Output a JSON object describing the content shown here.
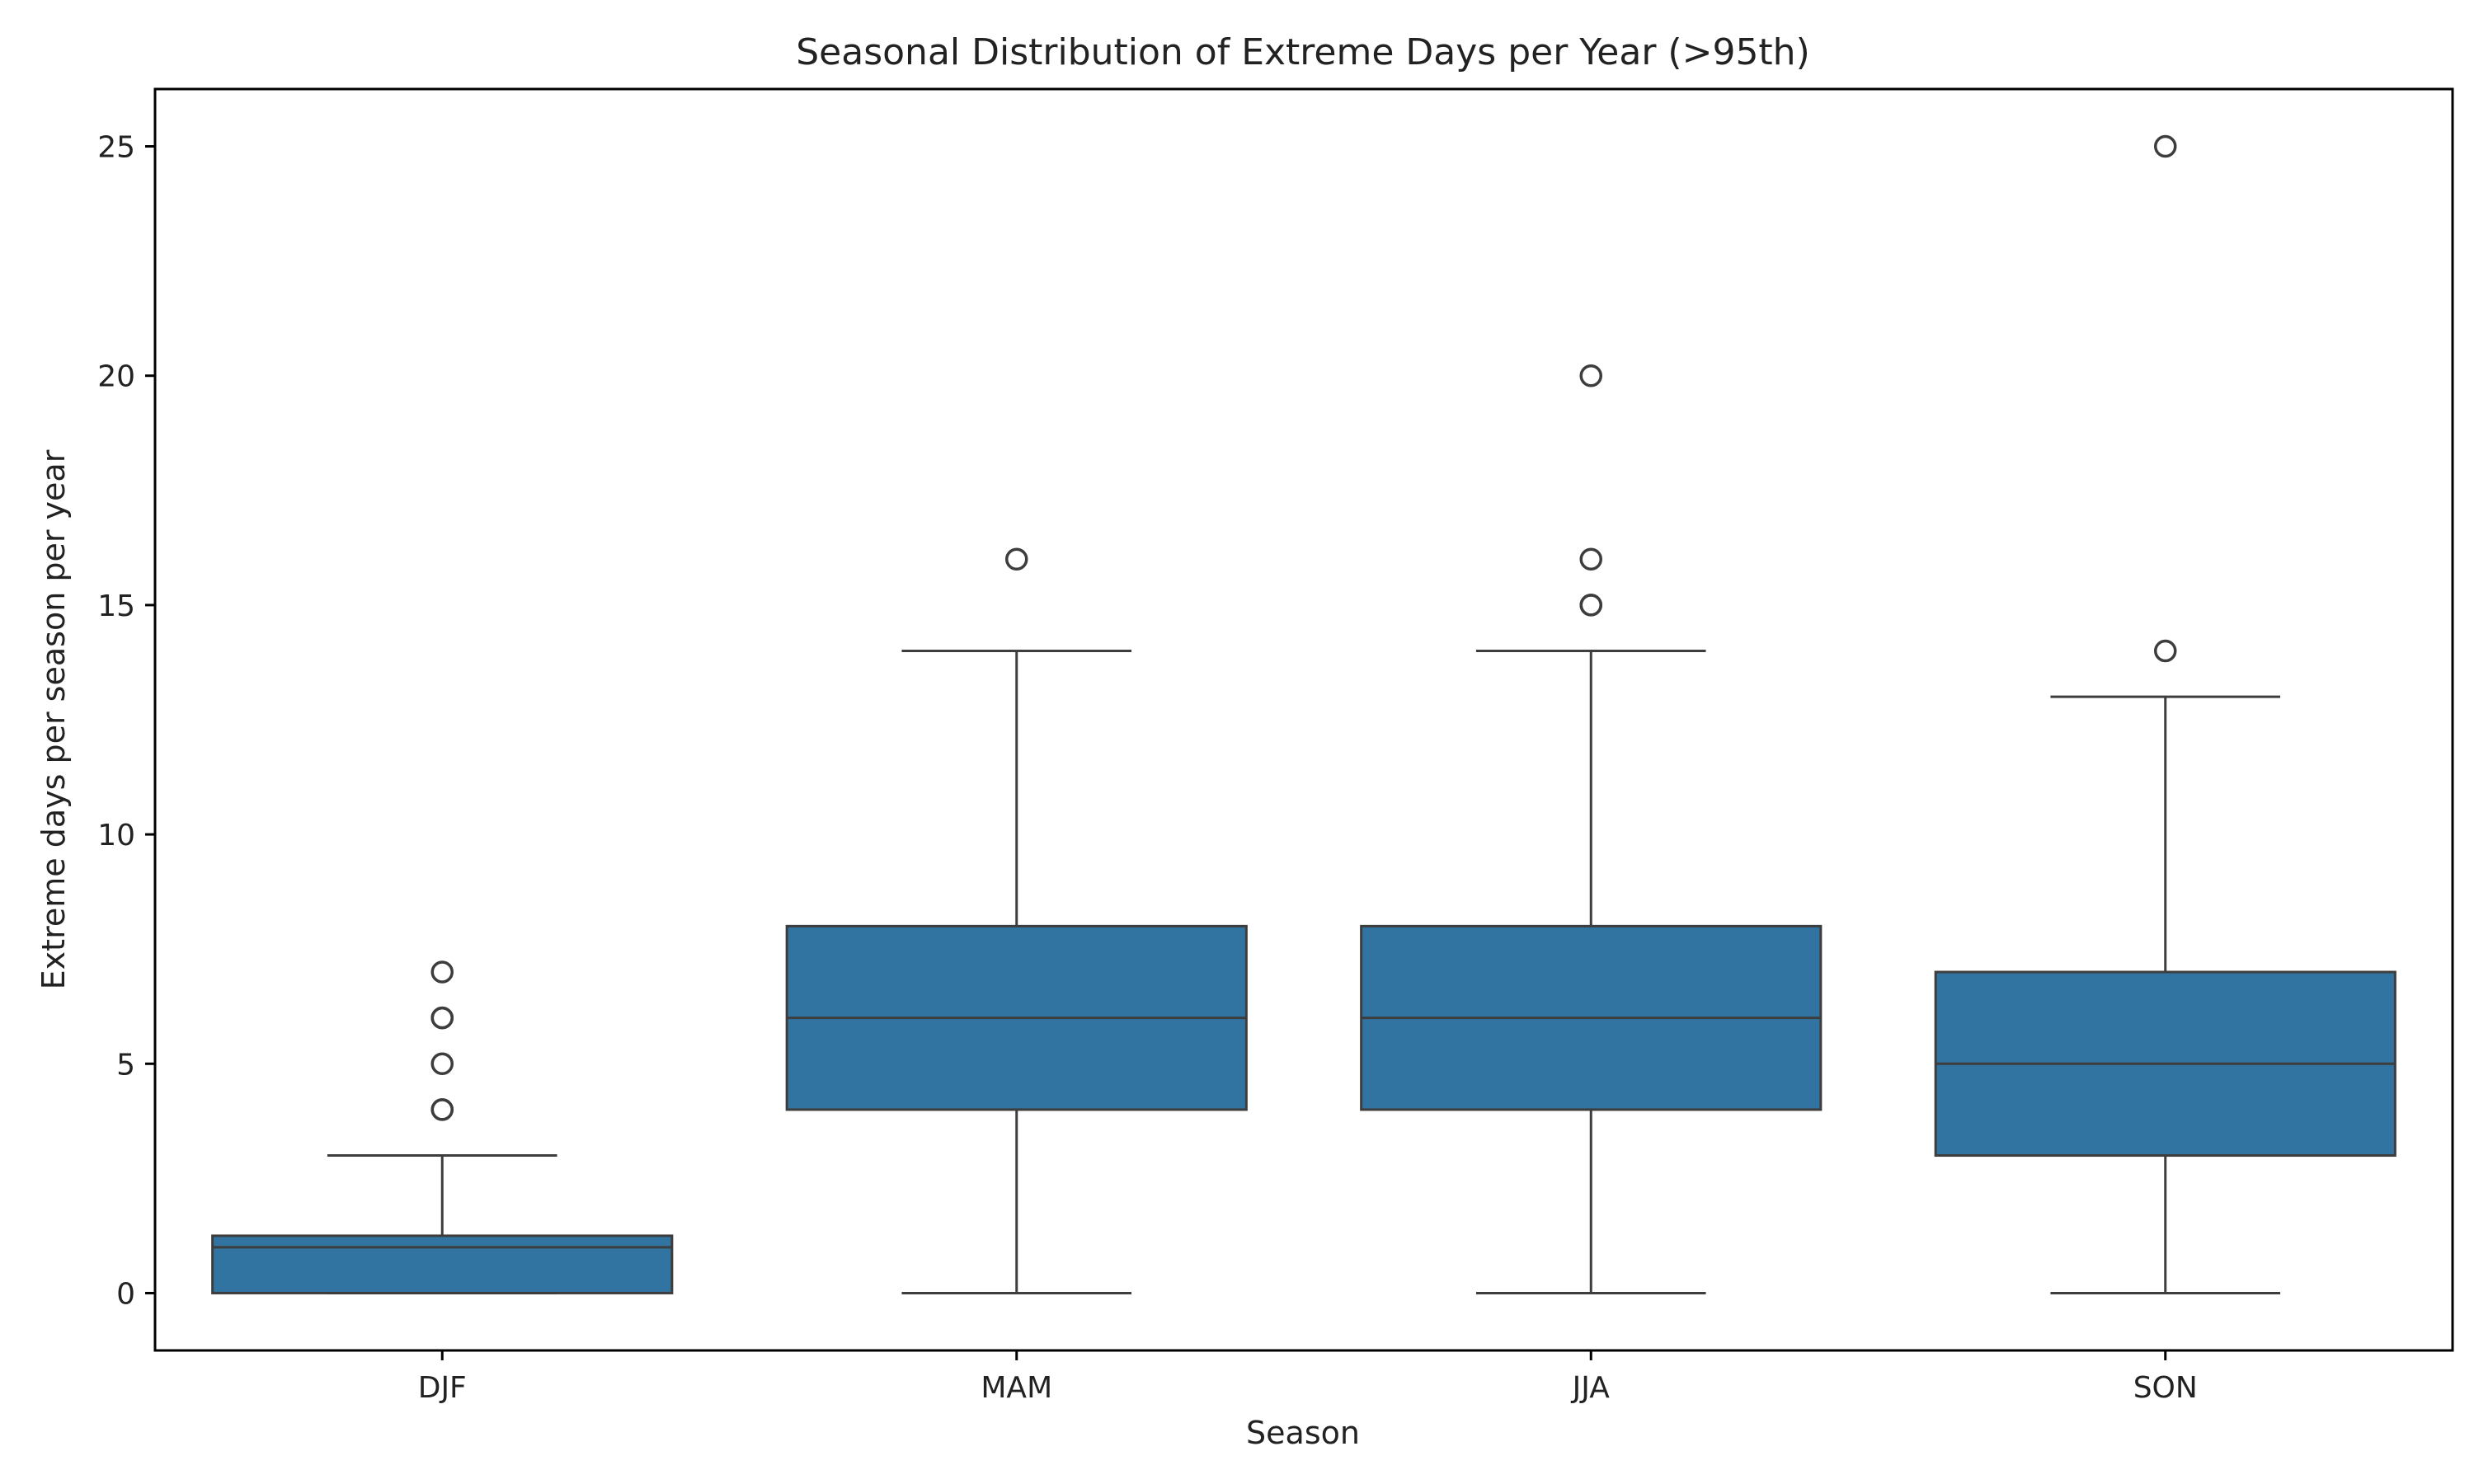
{
  "chart_data": {
    "type": "box",
    "title": "Seasonal Distribution of Extreme Days per Year (>95th)",
    "xlabel": "Season",
    "ylabel": "Extreme days per season per year",
    "categories": [
      "DJF",
      "MAM",
      "JJA",
      "SON"
    ],
    "ylim": [
      -1.25,
      26.25
    ],
    "yticks": [
      0,
      5,
      10,
      15,
      20,
      25
    ],
    "grid": false,
    "legend": "none",
    "colors": {
      "box_fill": "#3274a1",
      "box_edge": "#3d3d3d",
      "axis": "#000000",
      "text": "#222222"
    },
    "boxes": [
      {
        "category": "DJF",
        "whisker_low": 0,
        "q1": 0,
        "median": 1,
        "q3": 1.25,
        "whisker_high": 3,
        "outliers": [
          4,
          4,
          5,
          6,
          6,
          7
        ]
      },
      {
        "category": "MAM",
        "whisker_low": 0,
        "q1": 4,
        "median": 6,
        "q3": 8,
        "whisker_high": 14,
        "outliers": [
          16
        ]
      },
      {
        "category": "JJA",
        "whisker_low": 0,
        "q1": 4,
        "median": 6,
        "q3": 8,
        "whisker_high": 14,
        "outliers": [
          15,
          15,
          16,
          20
        ]
      },
      {
        "category": "SON",
        "whisker_low": 0,
        "q1": 3,
        "median": 5,
        "q3": 7,
        "whisker_high": 13,
        "outliers": [
          14,
          25
        ]
      }
    ]
  }
}
